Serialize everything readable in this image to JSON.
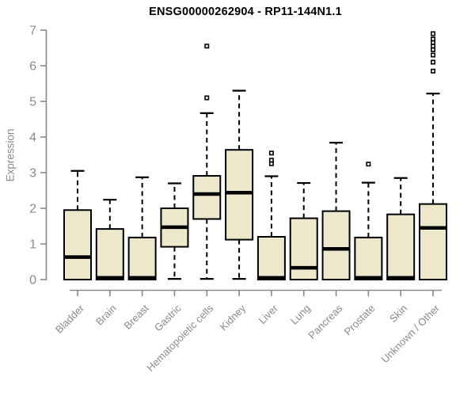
{
  "page": {
    "background": "#ffffff"
  },
  "chart_data": {
    "type": "boxplot",
    "title": "ENSG00000262904 - RP11-144N1.1",
    "ylabel": "Expression",
    "xlabel": "",
    "ylim": [
      0,
      7
    ],
    "yticks": [
      0,
      1,
      2,
      3,
      4,
      5,
      6,
      7
    ],
    "grid": false,
    "legend": "none",
    "x_label_rotation_deg": 45,
    "categories": [
      "Bladder",
      "Brain",
      "Breast",
      "Gastric",
      "Hematopoietic cells",
      "Kidney",
      "Liver",
      "Lung",
      "Pancreas",
      "Prostate",
      "Skin",
      "Unknown / Other"
    ],
    "boxes": [
      {
        "category": "Bladder",
        "whisker_low": 0,
        "q1": 0,
        "median": 0.63,
        "q3": 1.95,
        "whisker_high": 3.05,
        "outliers": []
      },
      {
        "category": "Brain",
        "whisker_low": 0,
        "q1": 0,
        "median": 0.05,
        "q3": 1.42,
        "whisker_high": 2.24,
        "outliers": []
      },
      {
        "category": "Breast",
        "whisker_low": 0,
        "q1": 0,
        "median": 0.05,
        "q3": 1.18,
        "whisker_high": 2.87,
        "outliers": []
      },
      {
        "category": "Gastric",
        "whisker_low": 0.02,
        "q1": 0.92,
        "median": 1.47,
        "q3": 2.0,
        "whisker_high": 2.7,
        "outliers": []
      },
      {
        "category": "Hematopoietic cells",
        "whisker_low": 0.02,
        "q1": 1.7,
        "median": 2.4,
        "q3": 2.91,
        "whisker_high": 4.67,
        "outliers": [
          5.1,
          6.55
        ]
      },
      {
        "category": "Kidney",
        "whisker_low": 0.02,
        "q1": 1.12,
        "median": 2.44,
        "q3": 3.64,
        "whisker_high": 5.3,
        "outliers": []
      },
      {
        "category": "Liver",
        "whisker_low": 0,
        "q1": 0,
        "median": 0.05,
        "q3": 1.2,
        "whisker_high": 2.9,
        "outliers": [
          3.25,
          3.35,
          3.55
        ]
      },
      {
        "category": "Lung",
        "whisker_low": 0,
        "q1": 0,
        "median": 0.33,
        "q3": 1.72,
        "whisker_high": 2.71,
        "outliers": []
      },
      {
        "category": "Pancreas",
        "whisker_low": 0,
        "q1": 0,
        "median": 0.86,
        "q3": 1.92,
        "whisker_high": 3.84,
        "outliers": []
      },
      {
        "category": "Prostate",
        "whisker_low": 0,
        "q1": 0,
        "median": 0.05,
        "q3": 1.18,
        "whisker_high": 2.72,
        "outliers": [
          3.24
        ]
      },
      {
        "category": "Skin",
        "whisker_low": 0,
        "q1": 0,
        "median": 0.05,
        "q3": 1.83,
        "whisker_high": 2.85,
        "outliers": []
      },
      {
        "category": "Unknown / Other",
        "whisker_low": 0,
        "q1": 0,
        "median": 1.45,
        "q3": 2.12,
        "whisker_high": 5.22,
        "outliers": [
          5.85,
          6.1,
          6.3,
          6.45,
          6.55,
          6.65,
          6.75,
          6.9
        ]
      }
    ],
    "colors": {
      "box_fill": "#EDE7CB",
      "box_stroke": "#000000",
      "median": "#000000",
      "whisker": "#000000",
      "outlier_stroke": "#000000",
      "outlier_fill": "#ffffff",
      "axis": "#8a8a8a",
      "tick_label": "#8a8a8a",
      "title": "#000000"
    }
  }
}
